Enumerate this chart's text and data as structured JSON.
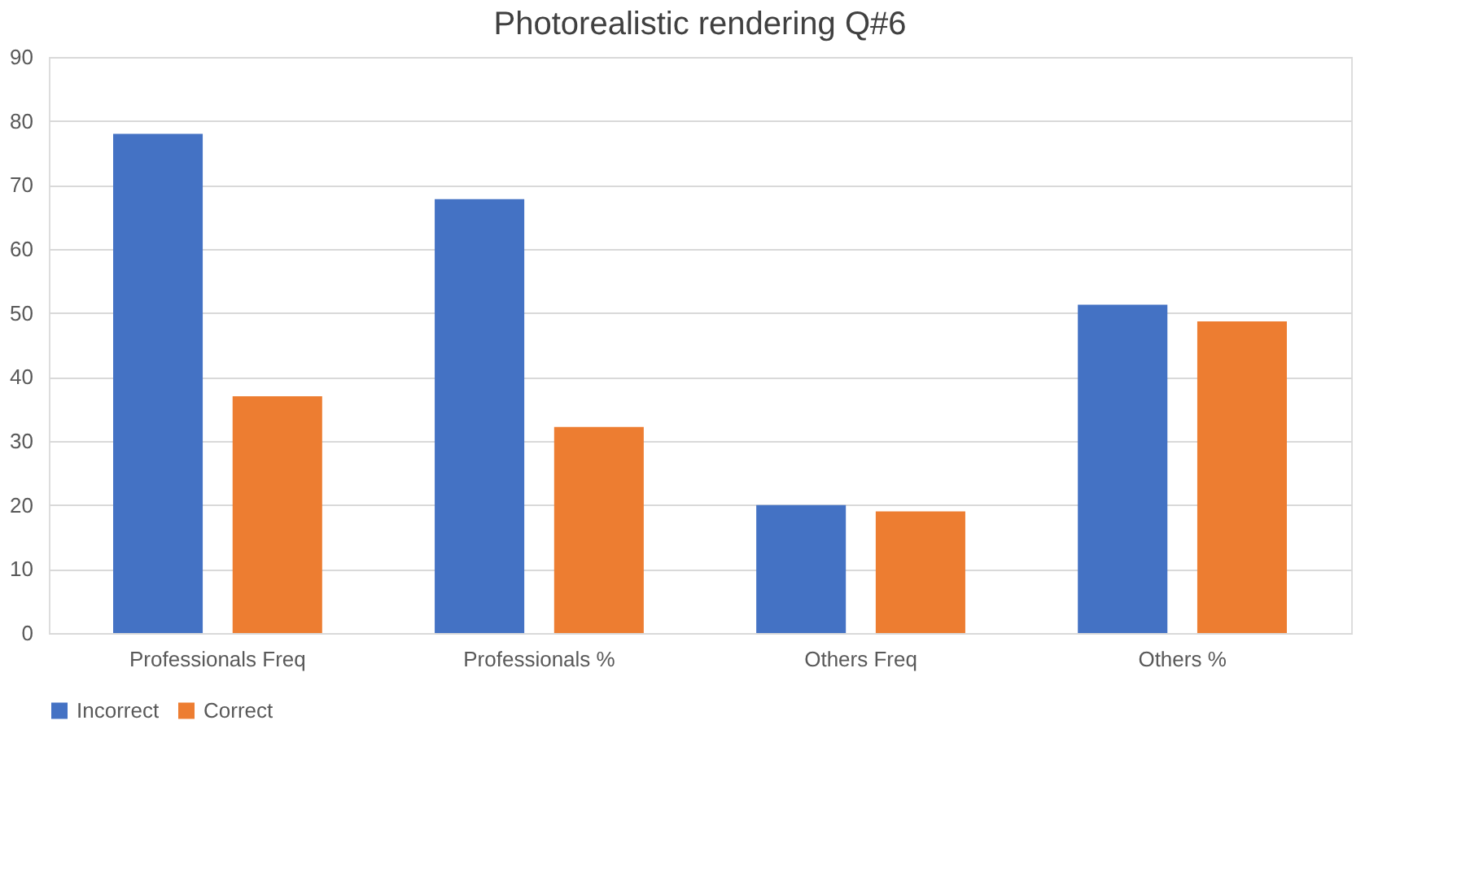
{
  "chart_data": {
    "type": "bar",
    "title": "Photorealistic rendering Q#6",
    "categories": [
      "Professionals Freq",
      "Professionals %",
      "Others Freq",
      "Others %"
    ],
    "series": [
      {
        "name": "Incorrect",
        "color": "#4472c4",
        "values": [
          78,
          67.8,
          20,
          51.3
        ]
      },
      {
        "name": "Correct",
        "color": "#ed7d31",
        "values": [
          37,
          32.2,
          19,
          48.7
        ]
      }
    ],
    "ylim": [
      0,
      90
    ],
    "yticks": [
      0,
      10,
      20,
      30,
      40,
      50,
      60,
      70,
      80,
      90
    ],
    "grid": "y",
    "legend": "bottom"
  }
}
